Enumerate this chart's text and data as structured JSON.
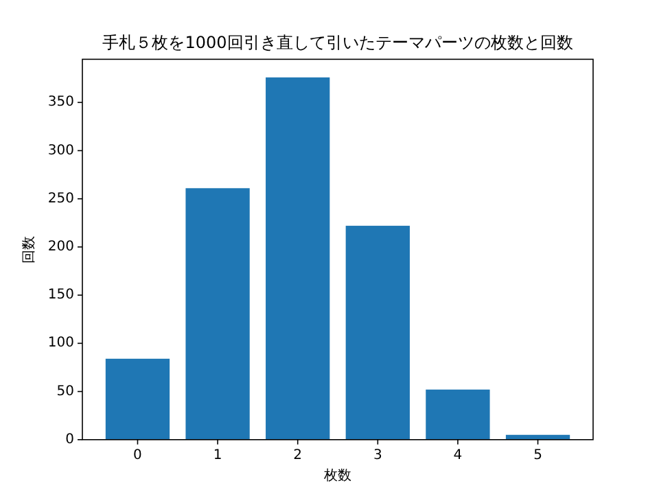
{
  "chart_data": {
    "type": "bar",
    "title": "手札５枚を1000回引き直して引いたテーマパーツの枚数と回数",
    "xlabel": "枚数",
    "ylabel": "回数",
    "categories": [
      "0",
      "1",
      "2",
      "3",
      "4",
      "5"
    ],
    "values": [
      84,
      261,
      376,
      222,
      52,
      5
    ],
    "color": "#1f77b4",
    "ylim": [
      0,
      394.8
    ],
    "yticks": [
      0,
      50,
      100,
      150,
      200,
      250,
      300,
      350
    ]
  }
}
